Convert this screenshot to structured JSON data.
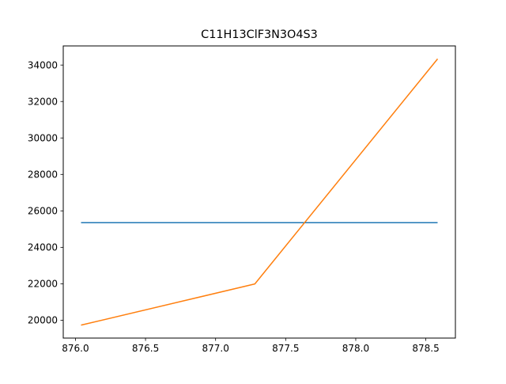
{
  "chart_data": {
    "type": "line",
    "title": "C11H13ClF3N3O4S3",
    "xlabel": "",
    "ylabel": "",
    "xlim": [
      875.913,
      878.711
    ],
    "ylim": [
      19020,
      35050
    ],
    "grid": false,
    "legend": "none",
    "x_ticks": [
      876.0,
      876.5,
      877.0,
      877.5,
      878.0,
      878.5
    ],
    "x_tick_labels": [
      "876.0",
      "876.5",
      "877.0",
      "877.5",
      "878.0",
      "878.5"
    ],
    "y_ticks": [
      20000,
      22000,
      24000,
      26000,
      28000,
      30000,
      32000,
      34000
    ],
    "y_tick_labels": [
      "20000",
      "22000",
      "24000",
      "26000",
      "28000",
      "30000",
      "32000",
      "34000"
    ],
    "series": [
      {
        "color": "#1f77b4",
        "x": [
          876.04,
          878.584
        ],
        "y": [
          25350,
          25350
        ]
      },
      {
        "color": "#ff7f0e",
        "x": [
          876.04,
          877.28,
          878.584
        ],
        "y": [
          19730,
          21990,
          34340
        ]
      }
    ]
  }
}
